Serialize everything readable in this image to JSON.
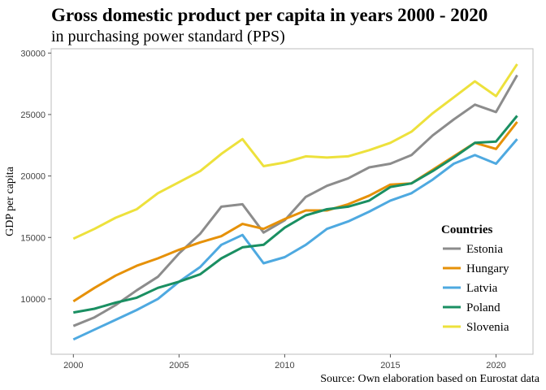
{
  "chart_data": {
    "type": "line",
    "title": "Gross domestic product per capita in years 2000 - 2020",
    "subtitle": "in purchasing power standard (PPS)",
    "y_label": "GDP per capita",
    "caption": "Source: Own elaboration based on Eurostat data",
    "legend_title": "Countries",
    "legend_position": "bottom-right",
    "x": [
      2000,
      2001,
      2002,
      2003,
      2004,
      2005,
      2006,
      2007,
      2008,
      2009,
      2010,
      2011,
      2012,
      2013,
      2014,
      2015,
      2016,
      2017,
      2018,
      2019,
      2020,
      2021
    ],
    "xlim": [
      1998.95,
      2021.75
    ],
    "xticks": [
      2000,
      2005,
      2010,
      2015,
      2020
    ],
    "ylim": [
      5500,
      30350
    ],
    "yticks": [
      10000,
      15000,
      20000,
      25000,
      30000
    ],
    "grid": false,
    "series": [
      {
        "name": "Estonia",
        "color": "#8c8c8c",
        "values": [
          7800,
          8500,
          9500,
          10700,
          11800,
          13700,
          15300,
          17500,
          17700,
          15400,
          16400,
          18300,
          19200,
          19800,
          20700,
          21000,
          21700,
          23300,
          24600,
          25800,
          25200,
          28200
        ]
      },
      {
        "name": "Hungary",
        "color": "#e69108",
        "values": [
          9800,
          10900,
          11900,
          12700,
          13300,
          14000,
          14600,
          15100,
          16100,
          15700,
          16500,
          17200,
          17200,
          17700,
          18400,
          19300,
          19400,
          20500,
          21600,
          22700,
          22200,
          24400
        ]
      },
      {
        "name": "Latvia",
        "color": "#4ea9e0",
        "values": [
          6700,
          7500,
          8300,
          9100,
          10000,
          11400,
          12600,
          14400,
          15200,
          12900,
          13400,
          14400,
          15700,
          16300,
          17100,
          18000,
          18600,
          19700,
          21000,
          21700,
          21000,
          23000
        ]
      },
      {
        "name": "Poland",
        "color": "#1a8f62",
        "values": [
          8900,
          9200,
          9700,
          10100,
          10900,
          11400,
          12000,
          13300,
          14200,
          14400,
          15800,
          16800,
          17300,
          17500,
          18000,
          19100,
          19400,
          20400,
          21500,
          22700,
          22800,
          24900
        ]
      },
      {
        "name": "Slovenia",
        "color": "#ede13c",
        "values": [
          14900,
          15700,
          16600,
          17300,
          18600,
          19500,
          20400,
          21800,
          23000,
          20800,
          21100,
          21600,
          21500,
          21600,
          22100,
          22700,
          23600,
          25100,
          26400,
          27700,
          26500,
          29100
        ]
      }
    ]
  }
}
